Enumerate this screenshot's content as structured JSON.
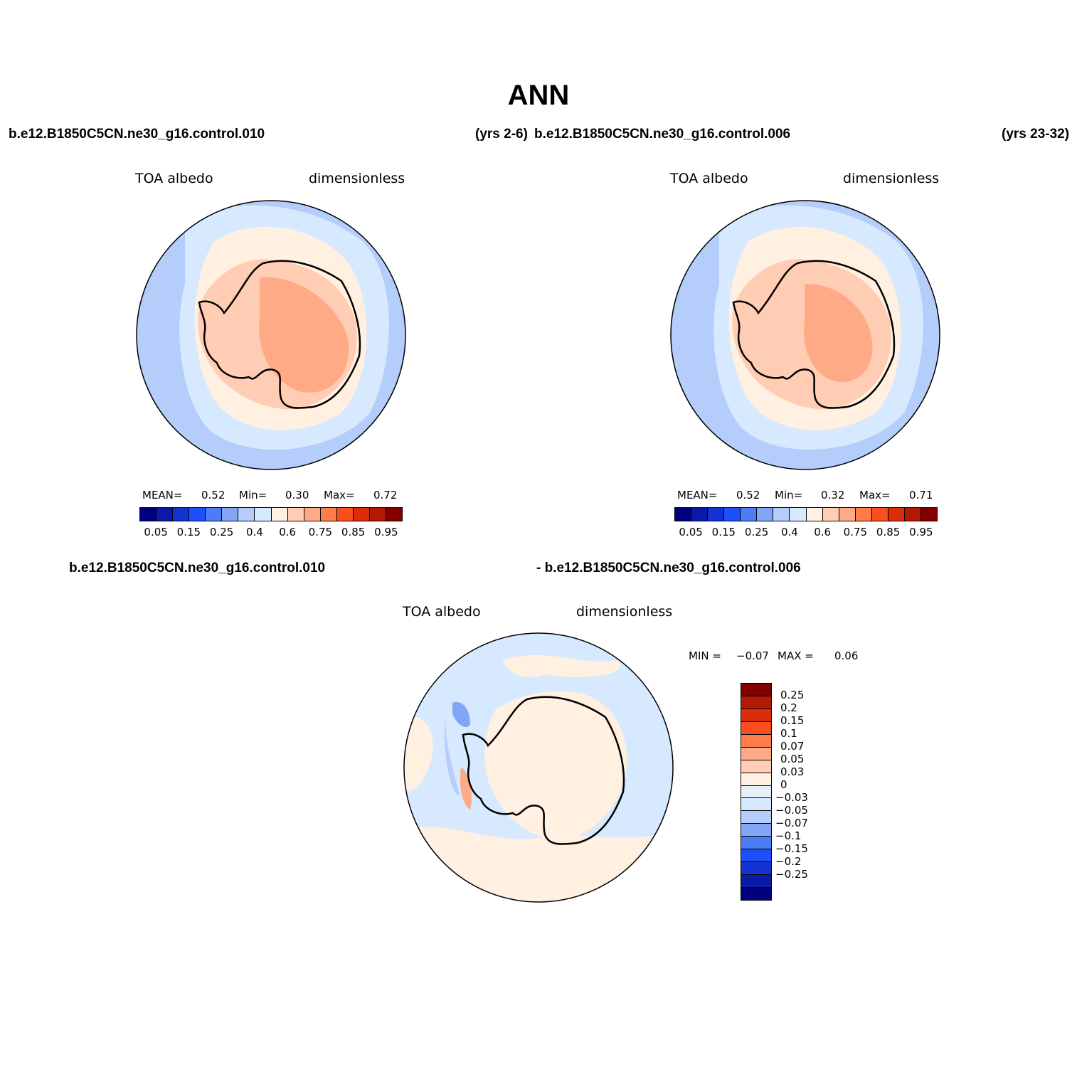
{
  "title": "ANN",
  "panels": [
    {
      "case_label": "b.e12.B1850C5CN.ne30_g16.control.010",
      "years_label": "(yrs 2-6)",
      "variable": "TOA albedo",
      "units": "dimensionless",
      "stats": {
        "mean_label": "MEAN=",
        "mean": "0.52",
        "min_label": "Min=",
        "min": "0.30",
        "max_label": "Max=",
        "max": "0.72"
      }
    },
    {
      "case_label": "b.e12.B1850C5CN.ne30_g16.control.006",
      "years_label": "(yrs 23-32)",
      "variable": "TOA albedo",
      "units": "dimensionless",
      "stats": {
        "mean_label": "MEAN=",
        "mean": "0.52",
        "min_label": "Min=",
        "min": "0.32",
        "max_label": "Max=",
        "max": "0.71"
      }
    }
  ],
  "diff_panel": {
    "case_a": "b.e12.B1850C5CN.ne30_g16.control.010",
    "case_b": "- b.e12.B1850C5CN.ne30_g16.control.006",
    "variable": "TOA albedo",
    "units": "dimensionless",
    "min_label": "MIN =",
    "min": "−0.07",
    "max_label": "MAX =",
    "max": "0.06"
  },
  "colorbar_abs": {
    "colors": [
      "#00007f",
      "#0a1aa6",
      "#1432d2",
      "#1e50fa",
      "#4b7ef5",
      "#82a6f5",
      "#b4cdfa",
      "#d7e9fe",
      "#fff0e1",
      "#ffcdb4",
      "#ffaa86",
      "#ff7c4b",
      "#fa4e1e",
      "#dc2d0a",
      "#b41905",
      "#820000"
    ],
    "labels": [
      "0.05",
      "0.15",
      "0.25",
      "0.4",
      "0.6",
      "0.75",
      "0.85",
      "0.95"
    ]
  },
  "colorbar_diff": {
    "colors": [
      "#820000",
      "#b41905",
      "#dc2d0a",
      "#fa4e1e",
      "#ff7c4b",
      "#ffaa86",
      "#ffcdb4",
      "#fff0e1",
      "#e6f0fb",
      "#d7e9fe",
      "#b4cdfa",
      "#82a6f5",
      "#4b7ef5",
      "#1e50fa",
      "#1432d2",
      "#0a1aa6",
      "#00007f"
    ],
    "labels": [
      "0.25",
      "0.2",
      "0.15",
      "0.1",
      "0.07",
      "0.05",
      "0.03",
      "0",
      "−0.03",
      "−0.05",
      "−0.07",
      "−0.1",
      "−0.15",
      "−0.2",
      "−0.25"
    ]
  }
}
